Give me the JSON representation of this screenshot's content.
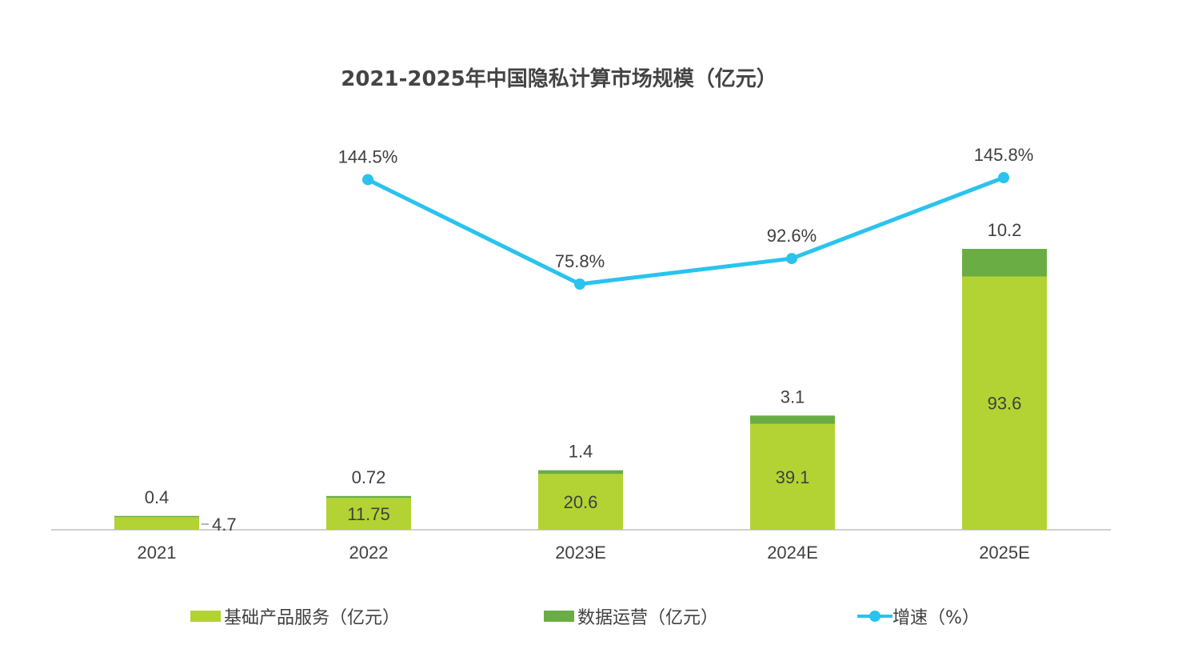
{
  "chart_data": {
    "type": "bar",
    "stacked": true,
    "title": "2021-2025年中国隐私计算市场规模（亿元）",
    "categories": [
      "2021",
      "2022",
      "2023E",
      "2024E",
      "2025E"
    ],
    "series": [
      {
        "name": "基础产品服务（亿元）",
        "type": "bar",
        "color": "#b3d334",
        "values": [
          4.7,
          11.75,
          20.6,
          39.1,
          93.6
        ],
        "labels": [
          "4.7",
          "11.75",
          "20.6",
          "39.1",
          "93.6"
        ]
      },
      {
        "name": "数据运营（亿元）",
        "type": "bar",
        "color": "#6aad45",
        "values": [
          0.4,
          0.72,
          1.4,
          3.1,
          10.2
        ],
        "labels": [
          "0.4",
          "0.72",
          "1.4",
          "3.1",
          "10.2"
        ]
      },
      {
        "name": "增速（%）",
        "type": "line",
        "color": "#2ac3ee",
        "values": [
          null,
          144.5,
          75.8,
          92.6,
          145.8
        ],
        "labels": [
          "",
          "144.5%",
          "75.8%",
          "92.6%",
          "145.8%"
        ]
      }
    ],
    "legend_position": "bottom",
    "grid": false
  }
}
